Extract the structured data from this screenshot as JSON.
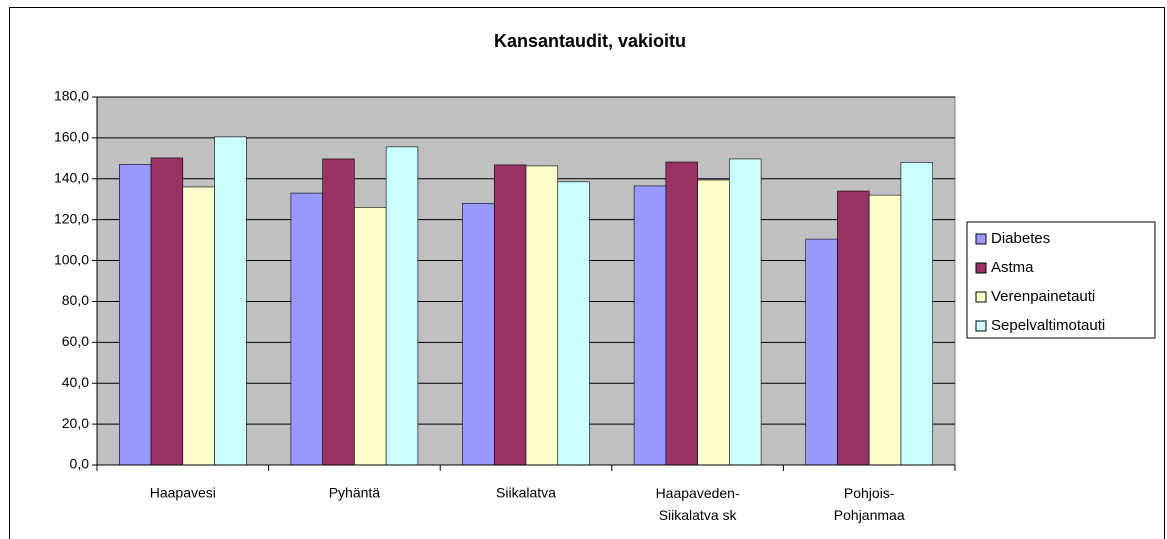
{
  "chart_data": {
    "type": "bar",
    "title": "Kansantaudit, vakioitu",
    "categories": [
      "Haapavesi",
      "Pyhäntä",
      "Siikalatva",
      "Haapaveden-Siikalatva sk",
      "Pohjois-Pohjanmaa"
    ],
    "series": [
      {
        "name": "Diabetes",
        "color": "#9999ff",
        "values": [
          147,
          133,
          128,
          136.5,
          110.5
        ]
      },
      {
        "name": "Astma",
        "color": "#993366",
        "values": [
          150.2,
          149.7,
          146.8,
          148.2,
          134
        ]
      },
      {
        "name": "Verenpainetauti",
        "color": "#ffffcc",
        "values": [
          136,
          126,
          146.3,
          139.4,
          132
        ]
      },
      {
        "name": "Sepelvaltimotauti",
        "color": "#ccffff",
        "values": [
          160.5,
          155.6,
          138.5,
          149.7,
          148
        ]
      }
    ],
    "ylim": [
      0,
      180
    ],
    "yticks": [
      {
        "value": 0,
        "label": "0,0"
      },
      {
        "value": 20,
        "label": "20,0"
      },
      {
        "value": 40,
        "label": "40,0"
      },
      {
        "value": 60,
        "label": "60,0"
      },
      {
        "value": 80,
        "label": "80,0"
      },
      {
        "value": 100,
        "label": "100,0"
      },
      {
        "value": 120,
        "label": "120,0"
      },
      {
        "value": 140,
        "label": "140,0"
      },
      {
        "value": 160,
        "label": "160,0"
      },
      {
        "value": 180,
        "label": "180,0"
      }
    ],
    "grid": true,
    "legend": "right"
  }
}
